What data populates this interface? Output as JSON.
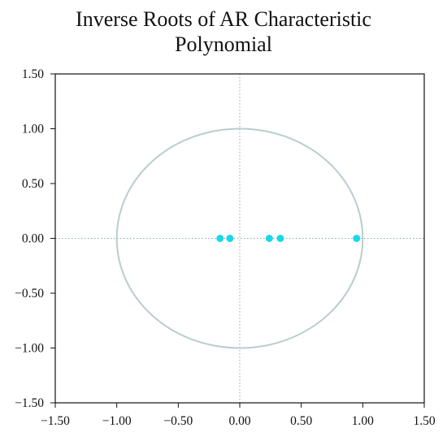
{
  "chart_data": {
    "type": "scatter",
    "title_lines": [
      "Inverse Roots of AR Characteristic",
      "Polynomial"
    ],
    "xlabel": "",
    "ylabel": "",
    "xlim": [
      -1.5,
      1.5
    ],
    "ylim": [
      -1.5,
      1.5
    ],
    "x_ticks": [
      -1.5,
      -1.0,
      -0.5,
      0.0,
      0.5,
      1.0,
      1.5
    ],
    "y_ticks": [
      -1.5,
      -1.0,
      -0.5,
      0.0,
      0.5,
      1.0,
      1.5
    ],
    "x_tick_labels": [
      "−1.50",
      "−1.00",
      "−0.50",
      "0.00",
      "0.50",
      "1.00",
      "1.50"
    ],
    "y_tick_labels": [
      "−1.50",
      "−1.00",
      "−0.50",
      "0.00",
      "0.50",
      "1.00",
      "1.50"
    ],
    "grid": false,
    "reference_lines": {
      "x": 0,
      "y": 0,
      "style": "dotted"
    },
    "unit_circle": {
      "center": [
        0,
        0
      ],
      "radius": 1.0
    },
    "points": [
      {
        "x": -0.16,
        "y": 0.0
      },
      {
        "x": -0.08,
        "y": 0.0
      },
      {
        "x": 0.24,
        "y": 0.0
      },
      {
        "x": 0.33,
        "y": 0.0
      },
      {
        "x": 0.95,
        "y": 0.0
      }
    ],
    "colors": {
      "points": "#1ad8e8",
      "circle": "#b9cdcf",
      "zero_lines": "#8aa9b0",
      "axis": "#111111"
    }
  }
}
